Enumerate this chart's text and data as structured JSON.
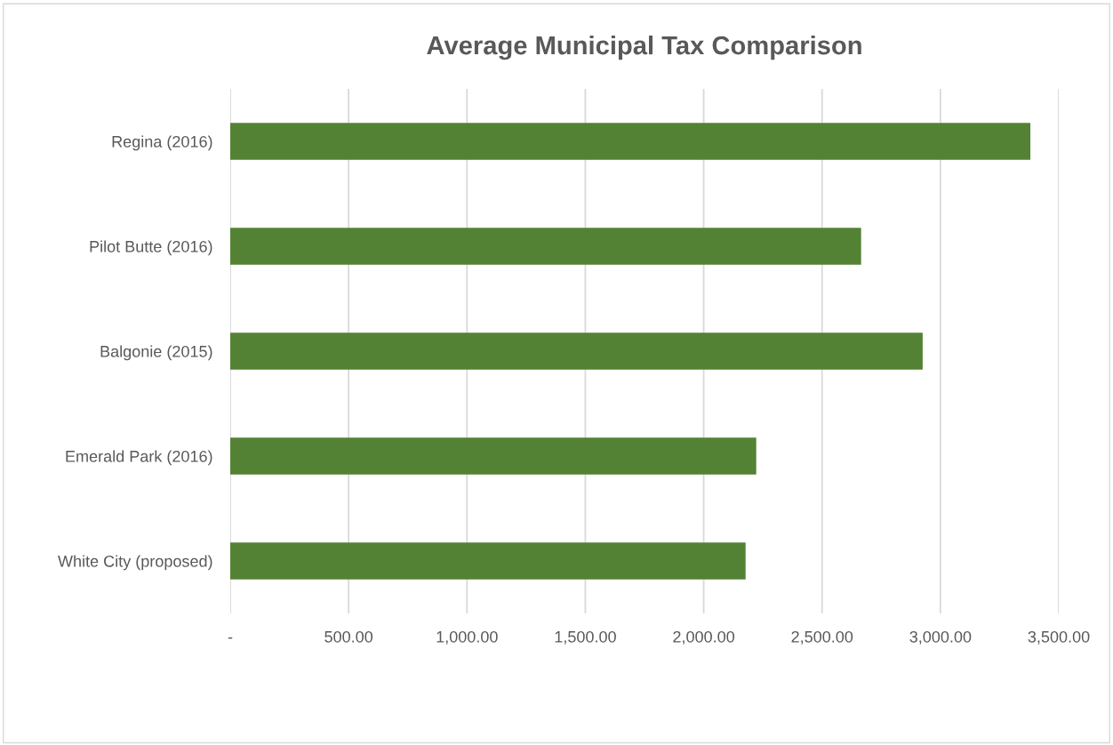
{
  "chart_data": {
    "type": "bar",
    "orientation": "horizontal",
    "title": "Average Municipal Tax Comparison",
    "categories": [
      "Regina (2016)",
      "Pilot Butte (2016)",
      "Balgonie (2015)",
      "Emerald Park (2016)",
      "White City (proposed)"
    ],
    "values": [
      3380,
      2665,
      2925,
      2222,
      2177
    ],
    "color": "#548235",
    "xlim": [
      0,
      3500
    ],
    "xticks": [
      {
        "value": 0,
        "label": "-"
      },
      {
        "value": 500,
        "label": "500.00"
      },
      {
        "value": 1000,
        "label": "1,000.00"
      },
      {
        "value": 1500,
        "label": "1,500.00"
      },
      {
        "value": 2000,
        "label": "2,000.00"
      },
      {
        "value": 2500,
        "label": "2,500.00"
      },
      {
        "value": 3000,
        "label": "3,000.00"
      },
      {
        "value": 3500,
        "label": "3,500.00"
      }
    ],
    "grid": "x",
    "legend": false
  }
}
